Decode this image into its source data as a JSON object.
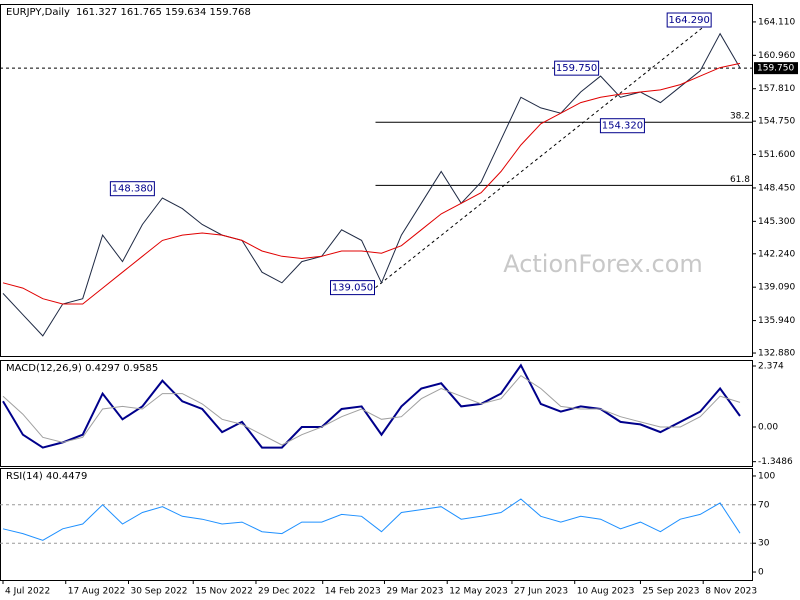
{
  "chart_data": [
    {
      "type": "line",
      "title": "EURJPY,Daily",
      "subtitle": "161.327 161.765 159.634 159.768",
      "watermark": "ActionForex.com",
      "x": [
        0,
        2,
        4,
        6,
        8,
        10,
        12,
        14,
        16,
        18,
        20,
        22,
        24,
        26,
        28,
        30,
        32,
        34,
        36,
        38,
        40,
        42,
        44,
        46,
        48,
        50,
        52,
        54,
        56,
        58,
        60,
        62,
        64,
        66,
        68,
        70,
        72,
        74
      ],
      "xlim": [
        -0.3,
        75.2
      ],
      "ylim": [
        132.6,
        165.8
      ],
      "yticks": [
        {
          "value": 132.88,
          "label": "132.880"
        },
        {
          "value": 135.94,
          "label": "135.940"
        },
        {
          "value": 139.09,
          "label": "139.090"
        },
        {
          "value": 142.24,
          "label": "142.240"
        },
        {
          "value": 145.3,
          "label": "145.300"
        },
        {
          "value": 148.45,
          "label": "148.450"
        },
        {
          "value": 151.6,
          "label": "151.600"
        },
        {
          "value": 154.75,
          "label": "154.750"
        },
        {
          "value": 157.81,
          "label": "157.810"
        },
        {
          "value": 160.96,
          "label": "160.960"
        },
        {
          "value": 164.11,
          "label": "164.110"
        }
      ],
      "series": [
        {
          "color": "#1f2a44",
          "values": [
            138.5,
            136.5,
            134.5,
            137.5,
            138,
            144,
            141.5,
            145,
            147.5,
            146.5,
            145,
            144,
            143.5,
            140.5,
            139.5,
            141.5,
            142,
            144.5,
            143.5,
            139.5,
            144,
            147,
            150,
            147,
            149,
            153,
            157,
            156,
            155.5,
            157.5,
            159,
            157,
            157.5,
            156.5,
            158,
            159.5,
            163,
            159.77
          ]
        },
        {
          "color": "#e00000",
          "values": [
            139.5,
            139,
            138,
            137.5,
            137.5,
            139,
            140.5,
            142,
            143.5,
            144,
            144.2,
            144,
            143.5,
            142.5,
            142,
            141.8,
            142,
            142.5,
            142.5,
            142.3,
            143,
            144.5,
            146,
            147,
            148,
            150,
            152.5,
            154.5,
            155.5,
            156.5,
            157,
            157.3,
            157.5,
            157.7,
            158.2,
            159,
            159.8,
            160.2
          ]
        }
      ],
      "current_price": {
        "value": 159.75,
        "label": "159.750"
      },
      "annotations": [
        {
          "label": "164.290",
          "x": 71.2,
          "y": 164.29
        },
        {
          "label": "159.750",
          "x": 59.9,
          "y": 159.75
        },
        {
          "label": "154.320",
          "x": 64.5,
          "y": 154.32
        },
        {
          "label": "148.380",
          "x": 15.3,
          "y": 148.38
        },
        {
          "label": "139.050",
          "x": 37.4,
          "y": 139.05
        }
      ],
      "fib_levels": [
        {
          "label": "38.2",
          "value": 154.65
        },
        {
          "label": "61.8",
          "value": 148.69
        }
      ]
    },
    {
      "type": "line",
      "title": "MACD(12,26,9) 0.4297 0.9585",
      "x": [
        0,
        2,
        4,
        6,
        8,
        10,
        12,
        14,
        16,
        18,
        20,
        22,
        24,
        26,
        28,
        30,
        32,
        34,
        36,
        38,
        40,
        42,
        44,
        46,
        48,
        50,
        52,
        54,
        56,
        58,
        60,
        62,
        64,
        66,
        68,
        70,
        72,
        74
      ],
      "xlim": [
        -0.3,
        75.2
      ],
      "ylim": [
        -1.517,
        2.607
      ],
      "yticks": [
        -1.3486,
        {
          "value": 0,
          "label": "0.00"
        },
        2.374
      ],
      "series": [
        {
          "color": "#00008b",
          "values": [
            1.0,
            -0.3,
            -0.8,
            -0.6,
            -0.3,
            1.3,
            0.3,
            0.8,
            1.8,
            1.0,
            0.7,
            -0.2,
            0.2,
            -0.8,
            -0.8,
            0.0,
            0.0,
            0.7,
            0.8,
            -0.3,
            0.8,
            1.5,
            1.7,
            0.8,
            0.9,
            1.3,
            2.4,
            0.9,
            0.6,
            0.8,
            0.7,
            0.2,
            0.1,
            -0.2,
            0.2,
            0.6,
            1.5,
            0.4297
          ]
        },
        {
          "color": "#a0a0a0",
          "values": [
            1.2,
            0.5,
            -0.4,
            -0.6,
            -0.4,
            0.7,
            0.8,
            0.7,
            1.3,
            1.3,
            0.9,
            0.3,
            0.1,
            -0.3,
            -0.7,
            -0.3,
            0.0,
            0.4,
            0.7,
            0.3,
            0.4,
            1.1,
            1.5,
            1.2,
            0.9,
            1.1,
            2.0,
            1.5,
            0.8,
            0.7,
            0.7,
            0.4,
            0.2,
            0.0,
            0.0,
            0.4,
            1.2,
            0.9585
          ]
        }
      ]
    },
    {
      "type": "line",
      "title": "RSI(14) 40.4479",
      "x": [
        0,
        2,
        4,
        6,
        8,
        10,
        12,
        14,
        16,
        18,
        20,
        22,
        24,
        26,
        28,
        30,
        32,
        34,
        36,
        38,
        40,
        42,
        44,
        46,
        48,
        50,
        52,
        54,
        56,
        58,
        60,
        62,
        64,
        66,
        68,
        70,
        72,
        74
      ],
      "xlim": [
        -0.3,
        75.2
      ],
      "ylim": [
        -8.3,
        108.3
      ],
      "yticks": [
        0,
        30,
        70,
        100
      ],
      "dashed_levels": [
        30,
        70
      ],
      "xticks": [
        {
          "value": 0,
          "label": "4 Jul 2022"
        },
        {
          "value": 6.3,
          "label": "17 Aug 2022"
        },
        {
          "value": 12.6,
          "label": "30 Sep 2022"
        },
        {
          "value": 19.1,
          "label": "15 Nov 2022"
        },
        {
          "value": 25.4,
          "label": "29 Dec 2022"
        },
        {
          "value": 32.1,
          "label": "14 Feb 2023"
        },
        {
          "value": 38.3,
          "label": "29 Mar 2023"
        },
        {
          "value": 44.6,
          "label": "12 May 2023"
        },
        {
          "value": 51.1,
          "label": "27 Jun 2023"
        },
        {
          "value": 57.4,
          "label": "10 Aug 2023"
        },
        {
          "value": 64,
          "label": "25 Sep 2023"
        },
        {
          "value": 70.3,
          "label": "8 Nov 2023"
        }
      ],
      "series": [
        {
          "color": "#1e90ff",
          "values": [
            45,
            40,
            33,
            45,
            50,
            70,
            50,
            62,
            68,
            58,
            55,
            50,
            52,
            42,
            40,
            52,
            52,
            60,
            58,
            42,
            62,
            65,
            68,
            55,
            58,
            62,
            76,
            58,
            52,
            58,
            55,
            45,
            52,
            42,
            55,
            60,
            72,
            40.4479
          ]
        }
      ]
    }
  ]
}
